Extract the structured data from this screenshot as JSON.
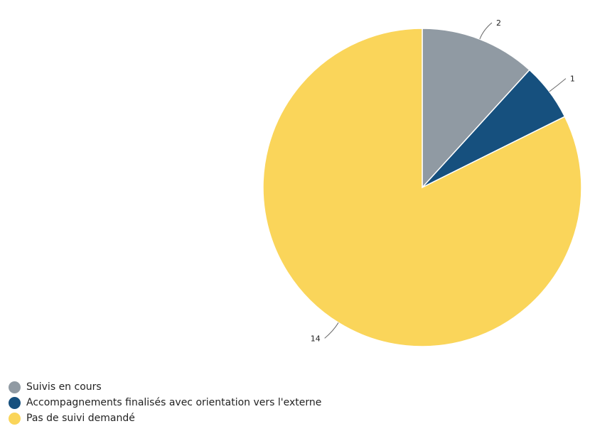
{
  "chart_data": {
    "type": "pie",
    "title": "",
    "slices": [
      {
        "label": "Suivis en cours",
        "value": 2,
        "color": "#909aa3"
      },
      {
        "label": "Accompagnements finalisés avec orientation vers l'externe",
        "value": 1,
        "color": "#16507e"
      },
      {
        "label": "Pas de suivi demandé",
        "value": 14,
        "color": "#fad55a"
      }
    ],
    "data_labels_shown": true,
    "legend_position": "bottom-left"
  }
}
